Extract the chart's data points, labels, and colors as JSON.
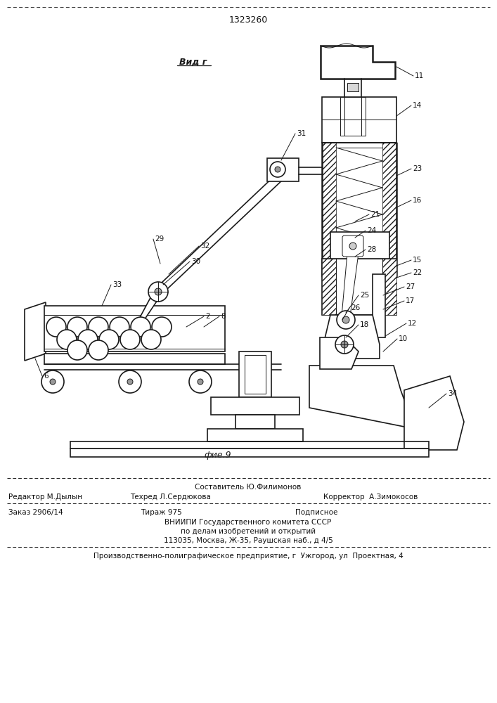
{
  "patent_number": "1323260",
  "bg_color": "#ffffff",
  "line_color": "#1a1a1a",
  "text_color": "#111111",
  "footer": {
    "line1_center": "Составитель Ю.Филимонов",
    "line2_left": "Редактор М.Дылын",
    "line2_mid": "Техред Л.Сердюкова",
    "line2_right": "Корректор  А.Зимокосов",
    "line3_left": "Заказ 2906/14",
    "line3_mid": "Тираж 975",
    "line3_right": "Подписное",
    "line4": "ВНИИПИ Государственного комитета СССР",
    "line5": "по делам изобретений и открытий",
    "line6": "113035, Москва, Ж-35, Раушская наб., д 4/5",
    "line7": "Производственно-полиграфическое предприятие, г  Ужгород, ул  Проектная, 4"
  }
}
